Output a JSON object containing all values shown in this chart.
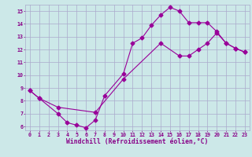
{
  "xlabel": "Windchill (Refroidissement éolien,°C)",
  "bg_color": "#cce8e8",
  "grid_color": "#aaaacc",
  "line_color": "#990099",
  "xlim": [
    -0.5,
    23.5
  ],
  "ylim": [
    5.7,
    15.5
  ],
  "xticks": [
    0,
    1,
    2,
    3,
    4,
    5,
    6,
    7,
    8,
    9,
    10,
    11,
    12,
    13,
    14,
    15,
    16,
    17,
    18,
    19,
    20,
    21,
    22,
    23
  ],
  "yticks": [
    6,
    7,
    8,
    9,
    10,
    11,
    12,
    13,
    14,
    15
  ],
  "line1_x": [
    0,
    1,
    3,
    4,
    5,
    6,
    7,
    8,
    10,
    11,
    12,
    13,
    14,
    15,
    16,
    17,
    18,
    19,
    20,
    21,
    22,
    23
  ],
  "line1_y": [
    8.8,
    8.2,
    7.0,
    6.3,
    6.1,
    5.9,
    6.5,
    8.4,
    10.1,
    12.5,
    12.9,
    13.9,
    14.7,
    15.3,
    15.0,
    14.1,
    14.1,
    14.1,
    13.4,
    12.5,
    12.1,
    11.8
  ],
  "line2_x": [
    0,
    1,
    3,
    7,
    10,
    14,
    16,
    17,
    18,
    19,
    20,
    21,
    22,
    23
  ],
  "line2_y": [
    8.8,
    8.2,
    7.5,
    7.1,
    9.7,
    12.5,
    11.5,
    11.5,
    12.0,
    12.5,
    13.3,
    12.5,
    12.1,
    11.8
  ],
  "marker_size": 2.5,
  "font_color": "#880088",
  "tick_fontsize": 4.8,
  "xlabel_fontsize": 5.8,
  "linewidth": 0.8
}
